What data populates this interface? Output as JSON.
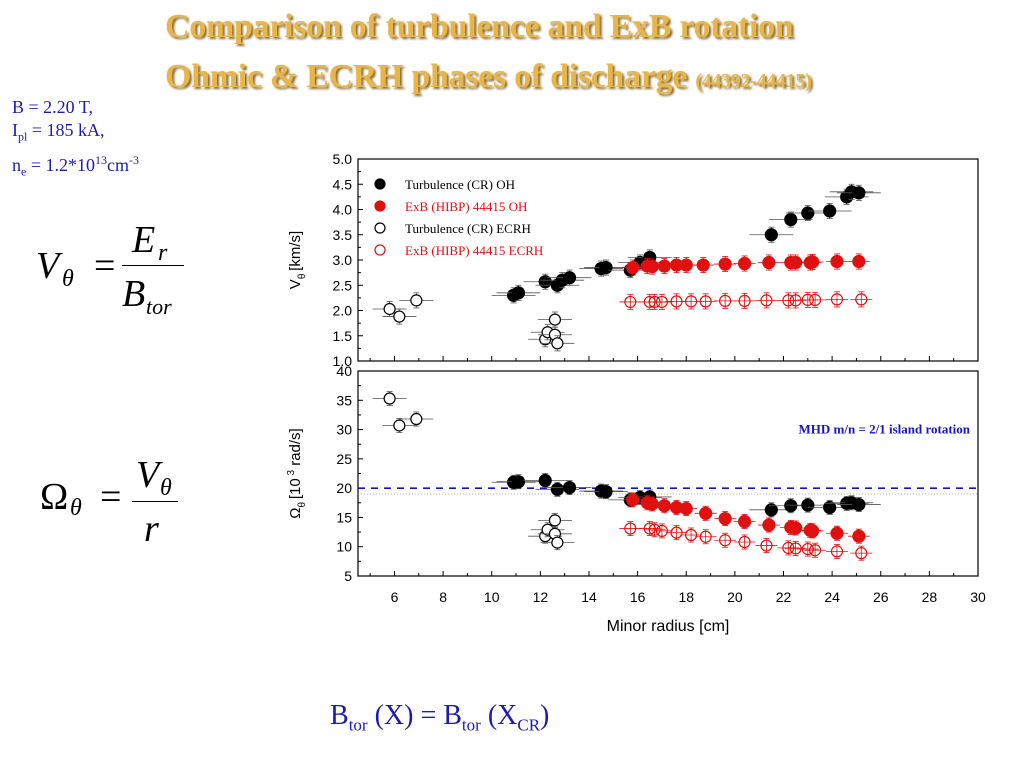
{
  "title": {
    "line1": "Comparison of turbulence and ExB rotation",
    "line2": "Ohmic & ECRH phases of discharge",
    "shots": "(44392-44415)"
  },
  "params": {
    "b_prefix": "B = 2.20 T,",
    "ipl_i": "I",
    "ipl_sub": "pl",
    "ipl_rest": " = 185 kA,",
    "ne_n": "n",
    "ne_sub": "e",
    "ne_mid": " = 1.2*10",
    "ne_sup1": "13",
    "ne_cm": "cm",
    "ne_sup2": "-3"
  },
  "formula1": {
    "lhs": "V",
    "lhs_sub": "θ",
    "num": "E",
    "num_sub": "r",
    "den": "B",
    "den_sub": "tor"
  },
  "formula2": {
    "lhs": "Ω",
    "lhs_sub": "θ",
    "num": "V",
    "num_sub": "θ",
    "den": "r"
  },
  "bottom_eq": {
    "b1": "B",
    "b1_sub": "tor",
    "x1": " (X) = B",
    "b2_sub": "tor",
    "x2": " (X",
    "x2_sub": "CR",
    "close": ")"
  },
  "chart_data": [
    {
      "type": "scatter",
      "ylabel": "V",
      "ylabel_sub": "θ",
      "ylabel_unit": "[km/s]",
      "xlim": [
        4.5,
        30
      ],
      "ylim": [
        1.0,
        5.0
      ],
      "yticks": [
        "1.0",
        "1.5",
        "2.0",
        "2.5",
        "3.0",
        "3.5",
        "4.0",
        "4.5",
        "5.0"
      ],
      "legend": [
        "Turbulence (CR) OH",
        "ExB (HIBP) 44415 OH",
        "Turbulence (CR) ECRH",
        "ExB (HIBP) 44415 ECRH"
      ],
      "colors": {
        "turb": "#000000",
        "exb": "#e01010"
      },
      "series": [
        {
          "name": "Turbulence (CR) OH",
          "x": [
            10.9,
            11.1,
            12.2,
            12.7,
            12.9,
            13.2,
            14.5,
            14.7,
            15.7,
            16.1,
            16.5,
            21.5,
            22.3,
            23.0,
            23.9,
            24.6,
            24.8,
            25.1
          ],
          "y": [
            2.3,
            2.35,
            2.57,
            2.5,
            2.6,
            2.65,
            2.83,
            2.85,
            2.8,
            2.95,
            3.05,
            3.5,
            3.8,
            3.93,
            3.97,
            4.25,
            4.35,
            4.33
          ]
        },
        {
          "name": "ExB (HIBP) 44415 OH",
          "x": [
            15.8,
            16.4,
            16.6,
            17.1,
            17.6,
            18.0,
            18.7,
            19.6,
            20.4,
            21.4,
            22.3,
            22.5,
            23.1,
            23.2,
            24.2,
            25.1
          ],
          "y": [
            2.85,
            2.88,
            2.87,
            2.88,
            2.9,
            2.9,
            2.9,
            2.92,
            2.93,
            2.95,
            2.95,
            2.95,
            2.95,
            2.96,
            2.97,
            2.97
          ]
        },
        {
          "name": "Turbulence (CR) ECRH",
          "x": [
            5.8,
            6.2,
            6.9,
            12.2,
            12.3,
            12.6,
            12.6,
            12.7
          ],
          "y": [
            2.03,
            1.88,
            2.2,
            1.43,
            1.57,
            1.82,
            1.52,
            1.35
          ]
        },
        {
          "name": "ExB (HIBP) 44415 ECRH",
          "x": [
            15.7,
            16.5,
            16.7,
            17.0,
            17.6,
            18.2,
            18.8,
            19.6,
            20.4,
            21.3,
            22.2,
            22.5,
            23.0,
            23.3,
            24.2,
            25.2
          ],
          "y": [
            2.17,
            2.17,
            2.17,
            2.17,
            2.18,
            2.18,
            2.18,
            2.19,
            2.19,
            2.2,
            2.2,
            2.2,
            2.21,
            2.21,
            2.22,
            2.22
          ]
        }
      ]
    },
    {
      "type": "scatter",
      "ylabel": "Ω",
      "ylabel_sub": "θ",
      "ylabel_unit": "[10",
      "ylabel_sup": "3",
      "ylabel_unit2": "rad/s]",
      "xlabel": "Minor radius [cm]",
      "xlim": [
        4.5,
        30
      ],
      "ylim": [
        5,
        40
      ],
      "xticks": [
        "6",
        "8",
        "10",
        "12",
        "14",
        "16",
        "18",
        "20",
        "22",
        "24",
        "26",
        "28",
        "30"
      ],
      "yticks": [
        "5",
        "10",
        "15",
        "20",
        "25",
        "30",
        "35",
        "40"
      ],
      "annotation": "MHD m/n = 2/1 island rotation",
      "mhd_level": 20,
      "series": [
        {
          "name": "Turbulence (CR) OH",
          "x": [
            10.9,
            11.1,
            12.2,
            12.7,
            13.2,
            14.5,
            14.7,
            15.7,
            16.1,
            16.5,
            21.5,
            22.3,
            23.0,
            23.9,
            24.6,
            24.8,
            25.1
          ],
          "y": [
            21.0,
            21.1,
            21.3,
            19.8,
            20.1,
            19.5,
            19.4,
            18.0,
            18.4,
            18.5,
            16.3,
            17.0,
            17.1,
            16.7,
            17.4,
            17.5,
            17.2
          ]
        },
        {
          "name": "ExB (HIBP) 44415 OH",
          "x": [
            15.8,
            16.4,
            16.6,
            17.1,
            17.6,
            18.0,
            18.8,
            19.6,
            20.4,
            21.4,
            22.3,
            22.5,
            23.1,
            23.2,
            24.2,
            25.1
          ],
          "y": [
            18.0,
            17.5,
            17.3,
            17.0,
            16.7,
            16.5,
            15.7,
            14.8,
            14.3,
            13.7,
            13.3,
            13.2,
            12.8,
            12.7,
            12.3,
            11.8
          ]
        },
        {
          "name": "Turbulence (CR) ECRH",
          "x": [
            5.8,
            6.2,
            6.9,
            12.2,
            12.3,
            12.6,
            12.6,
            12.7
          ],
          "y": [
            35.3,
            30.7,
            31.8,
            11.8,
            12.9,
            14.5,
            12.2,
            10.7
          ]
        },
        {
          "name": "ExB (HIBP) 44415 ECRH",
          "x": [
            15.7,
            16.5,
            16.7,
            17.0,
            17.6,
            18.2,
            18.8,
            19.6,
            20.4,
            21.3,
            22.2,
            22.5,
            23.0,
            23.3,
            24.2,
            25.2
          ],
          "y": [
            13.1,
            13.1,
            12.9,
            12.7,
            12.4,
            12.0,
            11.7,
            11.1,
            10.8,
            10.2,
            9.8,
            9.7,
            9.6,
            9.4,
            9.2,
            8.9
          ]
        }
      ]
    }
  ]
}
